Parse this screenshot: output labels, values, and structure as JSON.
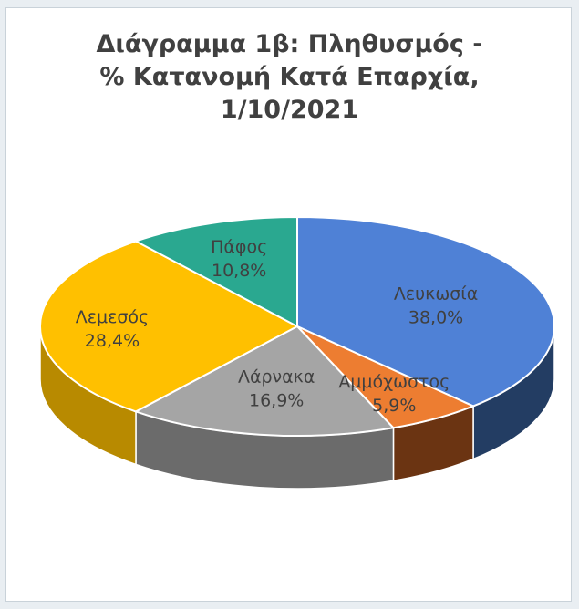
{
  "chart_data": {
    "type": "pie",
    "style": "3d",
    "title_lines": [
      "Διάγραμμα 1β: Πληθυσμός -",
      "% Κατανομή Κατά Επαρχία,",
      "1/10/2021"
    ],
    "slices": [
      {
        "name": "Λευκωσία",
        "value": 38.0,
        "label": "38,0%",
        "color": "#4f81d6",
        "side": "#233d63"
      },
      {
        "name": "Αμμόχωστος",
        "value": 5.9,
        "label": "5,9%",
        "color": "#ed7d31",
        "side": "#6b3412"
      },
      {
        "name": "Λάρνακα",
        "value": 16.9,
        "label": "16,9%",
        "color": "#a5a5a5",
        "side": "#6b6b6b"
      },
      {
        "name": "Λεμεσός",
        "value": 28.4,
        "label": "28,4%",
        "color": "#ffc000",
        "side": "#b88a00"
      },
      {
        "name": "Πάφος",
        "value": 10.8,
        "label": "10,8%",
        "color": "#2aa890",
        "side": "#17685a"
      }
    ]
  }
}
